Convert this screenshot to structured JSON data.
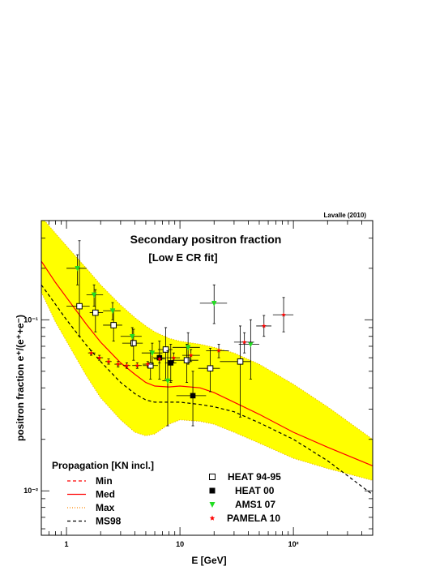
{
  "chart_data": {
    "type": "scatter",
    "title": "Secondary positron fraction",
    "subtitle": "[Low E CR fit]",
    "credit": "Lavalle (2010)",
    "xlabel": "E [GeV]",
    "ylabel": "positron fraction e⁺/(e⁺+e⁻)",
    "xscale": "log",
    "yscale": "log",
    "xlim": [
      0.6,
      500
    ],
    "ylim": [
      0.0055,
      0.38
    ],
    "xticks": [
      {
        "v": 1,
        "label": "1"
      },
      {
        "v": 10,
        "label": "10"
      },
      {
        "v": 100,
        "label": "10²"
      }
    ],
    "yticks": [
      {
        "v": 0.01,
        "label": "10⁻²"
      },
      {
        "v": 0.1,
        "label": "10⁻¹"
      }
    ],
    "legend_title": "Propagation [KN incl.]",
    "colors": {
      "band": "#ffff00",
      "band_edge": "#e0a000",
      "model": "#ff0000",
      "ms98": "#000000",
      "green": "#22dd22",
      "red": "#ff0000"
    },
    "models": [
      {
        "name": "Min",
        "style": "dashed",
        "color": "#ff0000",
        "x": [
          0.6,
          0.8,
          1,
          1.5,
          2,
          3,
          4,
          5,
          6,
          8,
          10,
          15,
          20,
          30,
          50,
          100,
          200,
          500
        ],
        "y": [
          0.29,
          0.235,
          0.2,
          0.15,
          0.123,
          0.098,
          0.085,
          0.076,
          0.07,
          0.066,
          0.064,
          0.0625,
          0.06,
          0.055,
          0.046,
          0.034,
          0.025,
          0.016
        ]
      },
      {
        "name": "Med",
        "style": "solid",
        "color": "#ff0000",
        "x": [
          0.6,
          0.8,
          1,
          1.5,
          2,
          3,
          4,
          5,
          6,
          8,
          10,
          15,
          20,
          30,
          50,
          100,
          200,
          500
        ],
        "y": [
          0.22,
          0.165,
          0.135,
          0.094,
          0.074,
          0.056,
          0.048,
          0.043,
          0.041,
          0.0405,
          0.041,
          0.04,
          0.0375,
          0.033,
          0.028,
          0.022,
          0.018,
          0.014
        ]
      },
      {
        "name": "Max",
        "style": "dotted",
        "color": "#ff8800",
        "x": [
          0.6,
          0.8,
          1,
          1.5,
          2,
          3,
          4,
          5,
          6,
          8,
          10,
          15,
          20,
          30,
          50,
          100,
          200,
          500
        ],
        "y": [
          0.29,
          0.235,
          0.2,
          0.15,
          0.123,
          0.098,
          0.085,
          0.076,
          0.07,
          0.066,
          0.064,
          0.0625,
          0.06,
          0.055,
          0.046,
          0.034,
          0.025,
          0.016
        ]
      },
      {
        "name": "MS98",
        "style": "dashed",
        "color": "#000000",
        "x": [
          0.6,
          0.8,
          1,
          1.5,
          2,
          3,
          4,
          5,
          6,
          8,
          10,
          15,
          20,
          30,
          50,
          100,
          200,
          500
        ],
        "y": [
          0.16,
          0.123,
          0.1,
          0.071,
          0.057,
          0.043,
          0.037,
          0.034,
          0.033,
          0.033,
          0.033,
          0.032,
          0.031,
          0.029,
          0.025,
          0.02,
          0.015,
          0.0095
        ]
      }
    ],
    "band_min": {
      "x": [
        0.6,
        0.8,
        1,
        1.5,
        2,
        3,
        4,
        5,
        6,
        8,
        10,
        15,
        20,
        30,
        50,
        100,
        200,
        500
      ],
      "y": [
        0.145,
        0.097,
        0.075,
        0.047,
        0.035,
        0.026,
        0.022,
        0.021,
        0.0215,
        0.0245,
        0.026,
        0.0255,
        0.0245,
        0.022,
        0.019,
        0.0155,
        0.0135,
        0.0115
      ]
    },
    "band_max": {
      "x": [
        0.6,
        0.8,
        1,
        1.5,
        2,
        3,
        4,
        5,
        6,
        8,
        10,
        15,
        20,
        30,
        50,
        100,
        200,
        500
      ],
      "y": [
        0.4,
        0.32,
        0.27,
        0.2,
        0.16,
        0.122,
        0.103,
        0.092,
        0.085,
        0.078,
        0.075,
        0.072,
        0.069,
        0.064,
        0.055,
        0.042,
        0.031,
        0.02
      ]
    },
    "series": [
      {
        "name": "HEAT 94-95",
        "marker": "open-square",
        "color": "#000000",
        "points": [
          {
            "x": 1.3,
            "y": 0.12,
            "ylo": 0.08,
            "yhi": 0.29,
            "xlo": 1.0,
            "xhi": 1.6
          },
          {
            "x": 1.8,
            "y": 0.11,
            "ylo": 0.085,
            "yhi": 0.15,
            "xlo": 1.6,
            "xhi": 2.1
          },
          {
            "x": 2.6,
            "y": 0.093,
            "ylo": 0.075,
            "yhi": 0.115,
            "xlo": 2.1,
            "xhi": 3.1
          },
          {
            "x": 3.9,
            "y": 0.073,
            "ylo": 0.058,
            "yhi": 0.088,
            "xlo": 3.1,
            "xhi": 4.7
          },
          {
            "x": 5.5,
            "y": 0.054,
            "ylo": 0.045,
            "yhi": 0.066,
            "xlo": 4.7,
            "xhi": 6.4
          },
          {
            "x": 7.5,
            "y": 0.067,
            "ylo": 0.045,
            "yhi": 0.09,
            "xlo": 6.4,
            "xhi": 8.6
          },
          {
            "x": 11.5,
            "y": 0.058,
            "ylo": 0.043,
            "yhi": 0.072,
            "xlo": 8.6,
            "xhi": 14.5
          },
          {
            "x": 18.5,
            "y": 0.052,
            "ylo": 0.038,
            "yhi": 0.068,
            "xlo": 14.5,
            "xhi": 22.5
          },
          {
            "x": 34,
            "y": 0.057,
            "ylo": 0.027,
            "yhi": 0.092,
            "xlo": 22.5,
            "xhi": 42
          }
        ]
      },
      {
        "name": "HEAT 00",
        "marker": "filled-square",
        "color": "#000000",
        "points": [
          {
            "x": 6.6,
            "y": 0.06,
            "ylo": 0.045,
            "yhi": 0.075,
            "xlo": 5.8,
            "xhi": 7.4
          },
          {
            "x": 8.3,
            "y": 0.056,
            "ylo": 0.043,
            "yhi": 0.072,
            "xlo": 7.4,
            "xhi": 9.3
          },
          {
            "x": 13,
            "y": 0.036,
            "ylo": 0.024,
            "yhi": 0.05,
            "xlo": 9.3,
            "xhi": 17
          }
        ]
      },
      {
        "name": "AMS1 07",
        "marker": "triangle-down",
        "color": "#22dd22",
        "points": [
          {
            "x": 1.25,
            "y": 0.2,
            "ylo": 0.16,
            "yhi": 0.24,
            "xlo": 1.0,
            "xhi": 1.5
          },
          {
            "x": 1.75,
            "y": 0.14,
            "ylo": 0.12,
            "yhi": 0.16,
            "xlo": 1.5,
            "xhi": 2.1
          },
          {
            "x": 2.55,
            "y": 0.113,
            "ylo": 0.1,
            "yhi": 0.126,
            "xlo": 2.1,
            "xhi": 3.0
          },
          {
            "x": 3.8,
            "y": 0.08,
            "ylo": 0.07,
            "yhi": 0.09,
            "xlo": 3.0,
            "xhi": 4.6
          },
          {
            "x": 5.7,
            "y": 0.064,
            "ylo": 0.055,
            "yhi": 0.073,
            "xlo": 4.6,
            "xhi": 7.0
          },
          {
            "x": 7.8,
            "y": 0.044,
            "ylo": 0.024,
            "yhi": 0.066,
            "xlo": 7.0,
            "xhi": 8.6
          },
          {
            "x": 11.8,
            "y": 0.069,
            "ylo": 0.055,
            "yhi": 0.084,
            "xlo": 8.6,
            "xhi": 15
          },
          {
            "x": 20,
            "y": 0.125,
            "ylo": 0.095,
            "yhi": 0.16,
            "xlo": 15,
            "xhi": 26
          },
          {
            "x": 42,
            "y": 0.072,
            "ylo": 0.045,
            "yhi": 0.1,
            "xlo": 33,
            "xhi": 50
          }
        ]
      },
      {
        "name": "PAMELA 10",
        "marker": "star",
        "color": "#ff0000",
        "points": [
          {
            "x": 1.65,
            "y": 0.064,
            "ylo": 0.062,
            "yhi": 0.066,
            "xlo": 1.55,
            "xhi": 1.8
          },
          {
            "x": 1.95,
            "y": 0.06,
            "ylo": 0.058,
            "yhi": 0.062,
            "xlo": 1.85,
            "xhi": 2.1
          },
          {
            "x": 2.35,
            "y": 0.057,
            "ylo": 0.055,
            "yhi": 0.059,
            "xlo": 2.2,
            "xhi": 2.5
          },
          {
            "x": 2.85,
            "y": 0.055,
            "ylo": 0.053,
            "yhi": 0.057,
            "xlo": 2.65,
            "xhi": 3.05
          },
          {
            "x": 3.4,
            "y": 0.054,
            "ylo": 0.052,
            "yhi": 0.056,
            "xlo": 3.15,
            "xhi": 3.65
          },
          {
            "x": 4.2,
            "y": 0.054,
            "ylo": 0.052,
            "yhi": 0.056,
            "xlo": 3.8,
            "xhi": 4.6
          },
          {
            "x": 5.2,
            "y": 0.055,
            "ylo": 0.053,
            "yhi": 0.057,
            "xlo": 4.7,
            "xhi": 5.7
          },
          {
            "x": 6.6,
            "y": 0.059,
            "ylo": 0.056,
            "yhi": 0.062,
            "xlo": 5.9,
            "xhi": 7.4
          },
          {
            "x": 8.8,
            "y": 0.06,
            "ylo": 0.056,
            "yhi": 0.064,
            "xlo": 7.6,
            "xhi": 10
          },
          {
            "x": 12.5,
            "y": 0.062,
            "ylo": 0.057,
            "yhi": 0.067,
            "xlo": 10.5,
            "xhi": 15
          },
          {
            "x": 22,
            "y": 0.066,
            "ylo": 0.06,
            "yhi": 0.072,
            "xlo": 17,
            "xhi": 27
          },
          {
            "x": 37,
            "y": 0.074,
            "ylo": 0.064,
            "yhi": 0.084,
            "xlo": 30,
            "xhi": 45
          },
          {
            "x": 55,
            "y": 0.092,
            "ylo": 0.08,
            "yhi": 0.106,
            "xlo": 47,
            "xhi": 64
          },
          {
            "x": 82,
            "y": 0.107,
            "ylo": 0.085,
            "yhi": 0.135,
            "xlo": 66,
            "xhi": 100
          }
        ]
      }
    ]
  }
}
